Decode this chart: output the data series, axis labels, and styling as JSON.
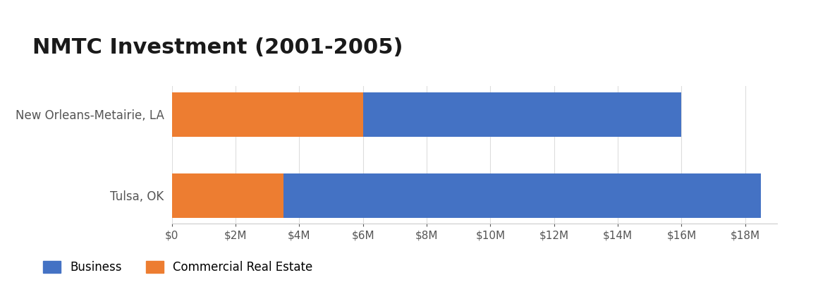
{
  "title": "NMTC Investment (2001-2005)",
  "categories": [
    "New Orleans-Metairie, LA",
    "Tulsa, OK"
  ],
  "business": [
    10000000,
    15000000
  ],
  "commercial_real_estate": [
    6000000,
    3500000
  ],
  "business_color": "#4472C4",
  "cre_color": "#ED7D31",
  "xlim": [
    0,
    19000000
  ],
  "xticks": [
    0,
    2000000,
    4000000,
    6000000,
    8000000,
    10000000,
    12000000,
    14000000,
    16000000,
    18000000
  ],
  "xtick_labels": [
    "$0",
    "$2M",
    "$4M",
    "$6M",
    "$8M",
    "$10M",
    "$12M",
    "$14M",
    "$16M",
    "$18M"
  ],
  "legend_labels": [
    "Business",
    "Commercial Real Estate"
  ],
  "header_color": "#4472C4",
  "bg_color": "#FFFFFF",
  "title_fontsize": 22,
  "tick_fontsize": 11,
  "label_fontsize": 12,
  "bar_height": 0.55,
  "title_color": "#1a1a1a"
}
